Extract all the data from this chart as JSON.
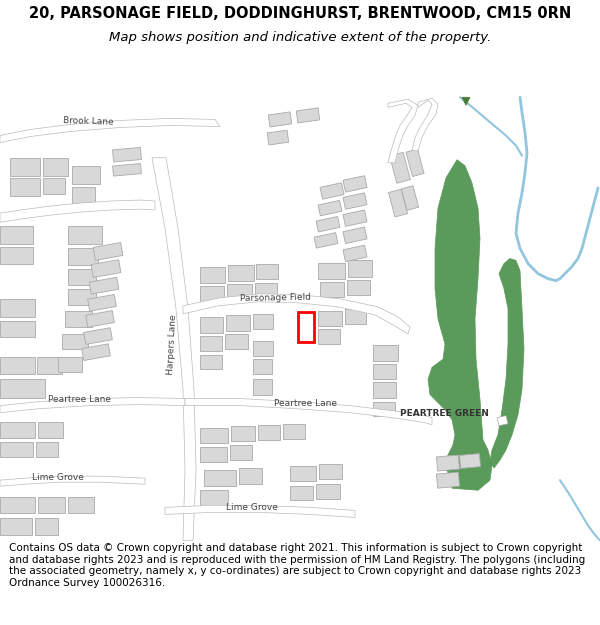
{
  "title": "20, PARSONAGE FIELD, DODDINGHURST, BRENTWOOD, CM15 0RN",
  "subtitle": "Map shows position and indicative extent of the property.",
  "footer": "Contains OS data © Crown copyright and database right 2021. This information is subject to Crown copyright and database rights 2023 and is reproduced with the permission of HM Land Registry. The polygons (including the associated geometry, namely x, y co-ordinates) are subject to Crown copyright and database rights 2023 Ordnance Survey 100026316.",
  "title_fontsize": 10.5,
  "subtitle_fontsize": 9.5,
  "footer_fontsize": 7.5,
  "bg_color": "#ffffff",
  "map_bg": "#f2f2f2",
  "building_color": "#d8d8d8",
  "building_edge": "#aaaaaa",
  "road_color": "#ffffff",
  "road_edge": "#bbbbbb",
  "green_color": "#5a9a5a",
  "water_color": "#92c5de",
  "property_color": "#ff0000"
}
